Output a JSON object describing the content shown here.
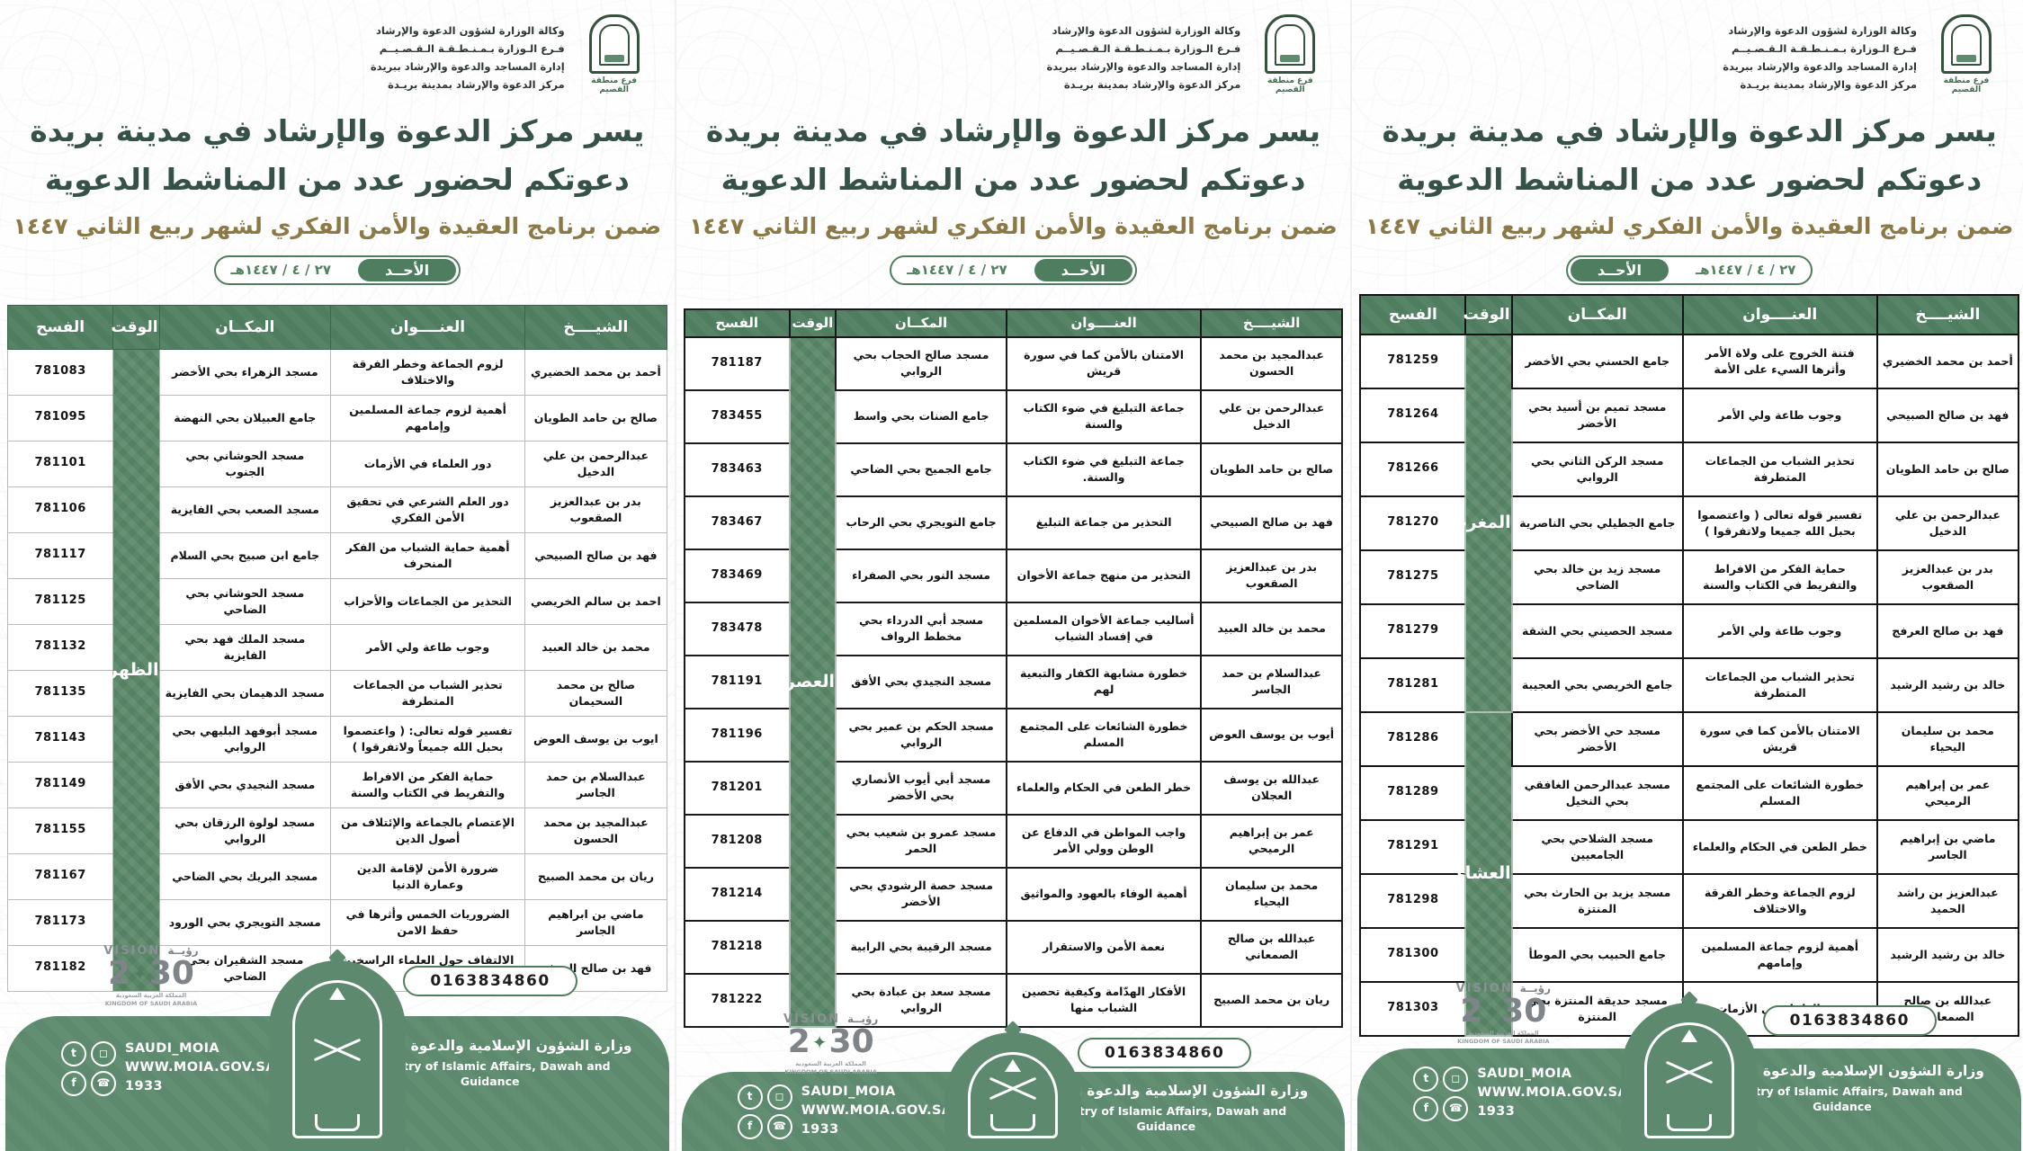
{
  "shared": {
    "agency_lines": [
      "وكالة الوزارة لشؤون الدعوة والإرشاد",
      "فـرع الـوزارة بـمـنـطـقـة الـقـصـيــم",
      "إدارة المساجد والدعوة والإرشاد ببريدة",
      "مركز الدعوة والإرشاد بمدينة بريـدة"
    ],
    "branch_label": "فرع منطقة القصيم",
    "title_line1": "يسر مركز الدعوة والإرشاد في مدينة بريدة",
    "title_line2": "دعوتكم لحضور عدد من المناشط الدعوية",
    "title_line3": "ضمن برنامج العقيدة والأمن الفكري لشهر ربيع الثاني ١٤٤٧",
    "date_day": "الأحــد",
    "date_value": "٢٧ / ٤ / ١٤٤٧هـ",
    "table_headers": {
      "sheikh": "الشيــــخ",
      "topic": "العنــــوان",
      "place": "المكــان",
      "time": "الوقت",
      "permit": "الفسح"
    },
    "phone": "0163834860",
    "vision": {
      "label_en": "VISION",
      "label_ar": "رؤيــة",
      "year_left": "2",
      "year_right": "30",
      "ksa_ar": "المملكة العربية السعودية",
      "ksa_en": "KINGDOM OF SAUDI ARABIA"
    },
    "footer": {
      "social_handle": "SAUDI_MOIA",
      "website": "WWW.MOIA.GOV.SA",
      "call_center": "1933",
      "ministry_ar": "وزارة الشؤون الإسلامية والدعوة والإرشاد",
      "ministry_en": "Ministry of Islamic Affairs, Dawah and Guidance",
      "icons": [
        "twitter-icon",
        "instagram-icon",
        "facebook-icon",
        "phone-icon"
      ]
    },
    "accent_green": "#4e7d5f",
    "footer_green": "#5d8a6e",
    "title_green": "#36514a",
    "title_gold": "#8b7a46"
  },
  "posters": [
    {
      "time_groups": [
        {
          "label": "الظهر",
          "span": 14
        }
      ],
      "rows": [
        {
          "permit": "781083",
          "place": "مسجد الزهراء بحي الأخضر",
          "topic": "لزوم الجماعة وخطر الفرقة والاختلاف",
          "sheikh": "أحمد بن محمد الخضيري"
        },
        {
          "permit": "781095",
          "place": "جامع العبيلان بحي النهضة",
          "topic": "أهمية لزوم جماعة المسلمين وإمامهم",
          "sheikh": "صالح بن حامد الطويان"
        },
        {
          "permit": "781101",
          "place": "مسجد الحوشاني بحي الجنوب",
          "topic": "دور العلماء في الأزمات",
          "sheikh": "عبدالرحمن بن علي الدخيل"
        },
        {
          "permit": "781106",
          "place": "مسجد الصعب بحي الفايزية",
          "topic": "دور العلم الشرعي في تحقيق الأمن الفكري",
          "sheikh": "بدر بن عبدالعزيز الصقعوب"
        },
        {
          "permit": "781117",
          "place": "جامع ابن صبيح بحي السلام",
          "topic": "أهمية حماية الشباب من الفكر المنحرف",
          "sheikh": "فهد بن صالح الصبيحي"
        },
        {
          "permit": "781125",
          "place": "مسجد الحوشاني بحي الضاحي",
          "topic": "التحذير من الجماعات والأحزاب",
          "sheikh": "احمد بن سالم الخريصي"
        },
        {
          "permit": "781132",
          "place": "مسجد الملك فهد بحي الفايزية",
          "topic": "وجوب طاعة ولي الأمر",
          "sheikh": "محمد بن خالد العبيد"
        },
        {
          "permit": "781135",
          "place": "مسجد الدهيمان بحي الفايزية",
          "topic": "تحذير الشباب من الجماعات المتطرفة",
          "sheikh": "صالح بن محمد السحيمان"
        },
        {
          "permit": "781143",
          "place": "مسجد أبوفهد البليهي بحي الروابي",
          "topic": "تفسير قوله تعالى: ( واعتصموا بحبل الله جميعاً ولاتفرقوا )",
          "sheikh": "ايوب بن يوسف العوض"
        },
        {
          "permit": "781149",
          "place": "مسجد النجيدي بحي الأفق",
          "topic": "حماية الفكر من الافراط والتفريط في الكتاب والسنة",
          "sheikh": "عبدالسلام بن حمد الجاسر"
        },
        {
          "permit": "781155",
          "place": "مسجد لولوة الرزقان بحي الروابي",
          "topic": "الإعتصام بالجماعة والإئتلاف من أصول الدين",
          "sheikh": "عبدالمجيد بن محمد الحسون"
        },
        {
          "permit": "781167",
          "place": "مسجد البريك بحي الضاحي",
          "topic": "ضرورة الأمن لإقامة الدين وعمارة الدنيا",
          "sheikh": "ريان بن محمد الصبيح"
        },
        {
          "permit": "781173",
          "place": "مسجد التويجري بحي الورود",
          "topic": "الضروريات الخمس وأثرها في حفظ الامن",
          "sheikh": "ماضي بن ابراهيم الجاسر"
        },
        {
          "permit": "781182",
          "place": "مسجد الشقيران بحي الضاحي",
          "topic": "الالتفاف حول العلماء الراسخين وثمراته",
          "sheikh": "فهد بن صالح العرفج"
        }
      ]
    },
    {
      "time_groups": [
        {
          "label": "العصر",
          "span": 13
        }
      ],
      "rows": [
        {
          "permit": "781187",
          "place": "مسجد صالح الحجاب بحي الروابي",
          "topic": "الامتنان بالأمن كما في سورة قريش",
          "sheikh": "عبدالمجيد بن محمد الحسون"
        },
        {
          "permit": "783455",
          "place": "جامع الصنات بحي واسط",
          "topic": "جماعة التبليغ في ضوء الكتاب والسنة",
          "sheikh": "عبدالرحمن بن علي الدخيل"
        },
        {
          "permit": "783463",
          "place": "جامع الجميح بحي الضاحي",
          "topic": "جماعة التبليغ في ضوء الكتاب والسنة.",
          "sheikh": "صالح بن حامد الطويان"
        },
        {
          "permit": "783467",
          "place": "جامع التويجري بحي الرحاب",
          "topic": "التحذير من جماعة التبليغ",
          "sheikh": "فهد بن صالح الصبيحي"
        },
        {
          "permit": "783469",
          "place": "مسجد النور بحي الصفراء",
          "topic": "التحذير من منهج جماعة الأخوان",
          "sheikh": "بدر بن عبدالعزيز الصقعوب"
        },
        {
          "permit": "783478",
          "place": "مسجد أبي الدرداء بحي مخطط الرواف",
          "topic": "أساليب جماعة الأخوان المسلمين في إفساد الشباب",
          "sheikh": "محمد بن خالد العبيد"
        },
        {
          "permit": "781191",
          "place": "مسجد النجيدي بحي الأفق",
          "topic": "خطورة مشابهة الكفار والتبعية لهم",
          "sheikh": "عبدالسلام بن حمد الجاسر"
        },
        {
          "permit": "781196",
          "place": "مسجد الحكم بن عمير بحي الروابي",
          "topic": "خطورة الشائعات على المجتمع المسلم",
          "sheikh": "أيوب بن يوسف العوض"
        },
        {
          "permit": "781201",
          "place": "مسجد أبي أيوب الأنصاري بحي الأخضر",
          "topic": "خطر الطعن في الحكام والعلماء",
          "sheikh": "عبدالله بن يوسف العجلان"
        },
        {
          "permit": "781208",
          "place": "مسجد عمرو بن شعيب بحي الحمر",
          "topic": "واجب المواطن في الدفاع عن الوطن وولي الأمر",
          "sheikh": "عمر بن إبراهيم الرميحي"
        },
        {
          "permit": "781214",
          "place": "مسجد حصة الرشودي بحي الأخضر",
          "topic": "أهمية الوفاء بالعهود والمواثيق",
          "sheikh": "محمد بن سليمان اليحياء"
        },
        {
          "permit": "781218",
          "place": "مسجد الرقيبة بحي الرابية",
          "topic": "نعمة الأمن والاستقرار",
          "sheikh": "عبدالله بن صالح الصمعاني"
        },
        {
          "permit": "781222",
          "place": "مسجد سعد بن عبادة بحي الروابي",
          "topic": "الأفكار الهدّامة وكيفية تحصين الشباب منها",
          "sheikh": "ريان بن محمد الصبيح"
        }
      ]
    },
    {
      "time_groups": [
        {
          "label": "المغرب",
          "span": 7
        },
        {
          "label": "العشاء",
          "span": 6
        }
      ],
      "rows": [
        {
          "permit": "781259",
          "place": "جامع الحسني بحي الأخضر",
          "topic": "فتنة الخروج على ولاة الأمر وأثرها السيء على الأمة",
          "sheikh": "أحمد بن محمد الخضيري"
        },
        {
          "permit": "781264",
          "place": "مسجد تميم بن أسيد بحي الأخضر",
          "topic": "وجوب طاعة ولي الأمر",
          "sheikh": "فهد بن صالح الصبيحي"
        },
        {
          "permit": "781266",
          "place": "مسجد الركن الثاني بحي الروابي",
          "topic": "تحذير الشباب من الجماعات المتطرفة",
          "sheikh": "صالح بن حامد الطويان"
        },
        {
          "permit": "781270",
          "place": "جامع الجطيلي بحي الناصرية",
          "topic": "تفسير قوله تعالى ( واعتصموا بحبل الله جميعا ولاتفرقوا )",
          "sheikh": "عبدالرحمن بن علي الدخيل"
        },
        {
          "permit": "781275",
          "place": "مسجد زيد بن خالد بحي الضاحي",
          "topic": "حماية الفكر من الافراط والتفريط في الكتاب والسنة",
          "sheikh": "بدر بن عبدالعزيز الصقعوب"
        },
        {
          "permit": "781279",
          "place": "مسجد الحصيني بحي الشقة",
          "topic": "وجوب طاعة ولي الأمر",
          "sheikh": "فهد بن صالح العرفج"
        },
        {
          "permit": "781281",
          "place": "جامع الخريصي بحي العجيبة",
          "topic": "تحذير الشباب من الجماعات المتطرفة",
          "sheikh": "خالد بن رشيد الرشيد"
        },
        {
          "permit": "781286",
          "place": "مسجد حي الأخضر بحي الأخضر",
          "topic": "الامتنان بالأمن كما في سورة قريش",
          "sheikh": "محمد بن سليمان اليحياء"
        },
        {
          "permit": "781289",
          "place": "مسجد عبدالرحمن الغافقي بحي النخيل",
          "topic": "خطورة الشائعات على المجتمع المسلم",
          "sheikh": "عمر بن إبراهيم الرميحي"
        },
        {
          "permit": "781291",
          "place": "مسجد الشلاحي بحي الجامعيين",
          "topic": "خطر الطعن في الحكام والعلماء",
          "sheikh": "ماضي بن إبراهيم الجاسر"
        },
        {
          "permit": "781298",
          "place": "مسجد يزيد بن الحارث بحي المنتزة",
          "topic": "لزوم الجماعة وخطر الفرقة والاختلاف",
          "sheikh": "عبدالعزيز بن راشد الحميد"
        },
        {
          "permit": "781300",
          "place": "جامع الحبيب بحي الموطأ",
          "topic": "أهمية لزوم جماعة المسلمين وإمامهم",
          "sheikh": "خالد بن رشيد الرشيد"
        },
        {
          "permit": "781303",
          "place": "مسجد حديقة المنتزة بحي المنتزة",
          "topic": "دور العلماء في الأزمات",
          "sheikh": "عبدالله بن صالح الصمعاني"
        }
      ]
    }
  ]
}
